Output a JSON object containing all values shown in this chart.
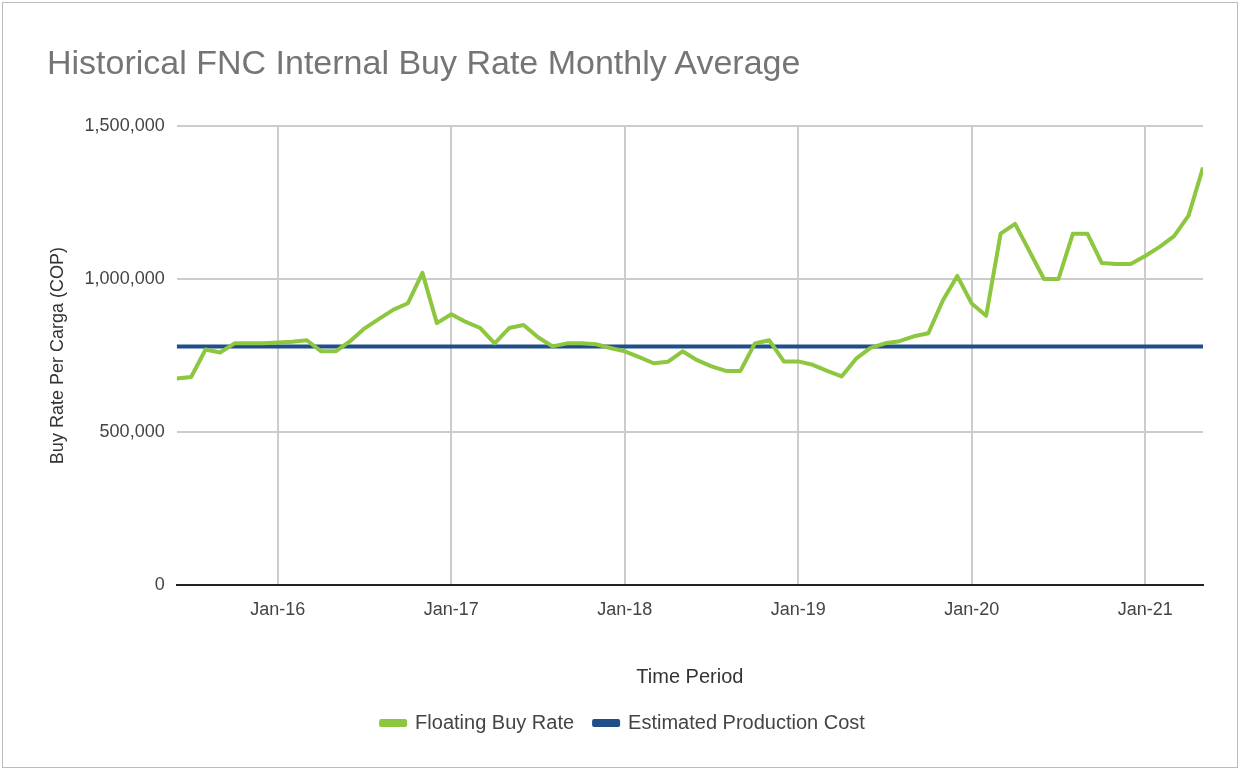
{
  "chart_data": {
    "type": "line",
    "title": "Historical FNC Internal Buy Rate Monthly Average",
    "xlabel": "Time Period",
    "ylabel": "Buy Rate Per Carga (COP)",
    "x": [
      "2015-06",
      "2015-07",
      "2015-08",
      "2015-09",
      "2015-10",
      "2015-11",
      "2015-12",
      "2016-01",
      "2016-02",
      "2016-03",
      "2016-04",
      "2016-05",
      "2016-06",
      "2016-07",
      "2016-08",
      "2016-09",
      "2016-10",
      "2016-11",
      "2016-12",
      "2017-01",
      "2017-02",
      "2017-03",
      "2017-04",
      "2017-05",
      "2017-06",
      "2017-07",
      "2017-08",
      "2017-09",
      "2017-10",
      "2017-11",
      "2017-12",
      "2018-01",
      "2018-02",
      "2018-03",
      "2018-04",
      "2018-05",
      "2018-06",
      "2018-07",
      "2018-08",
      "2018-09",
      "2018-10",
      "2018-11",
      "2018-12",
      "2019-01",
      "2019-02",
      "2019-03",
      "2019-04",
      "2019-05",
      "2019-06",
      "2019-07",
      "2019-08",
      "2019-09",
      "2019-10",
      "2019-11",
      "2019-12",
      "2020-01",
      "2020-02",
      "2020-03",
      "2020-04",
      "2020-05",
      "2020-06",
      "2020-07",
      "2020-08",
      "2020-09",
      "2020-10",
      "2020-11",
      "2020-12",
      "2021-01",
      "2021-02",
      "2021-03",
      "2021-04",
      "2021-05"
    ],
    "series": [
      {
        "name": "Floating Buy Rate",
        "color": "#8dc63f",
        "values": [
          675000,
          680000,
          770000,
          760000,
          790000,
          790000,
          790000,
          793000,
          795000,
          800000,
          764000,
          764000,
          797000,
          839000,
          870000,
          900000,
          921000,
          1020000,
          856000,
          885000,
          860000,
          840000,
          790000,
          840000,
          850000,
          810000,
          780000,
          790000,
          790000,
          787000,
          775000,
          764000,
          745000,
          725000,
          730000,
          764000,
          735000,
          715000,
          700000,
          700000,
          790000,
          800000,
          731000,
          731000,
          720000,
          700000,
          682000,
          740000,
          775000,
          790000,
          797000,
          813000,
          823000,
          930000,
          1010000,
          920000,
          880000,
          1148000,
          1180000,
          1090000,
          1000000,
          1000000,
          1148000,
          1148000,
          1052000,
          1049000,
          1049000,
          1075000,
          1105000,
          1140000,
          1207000,
          1364000
        ]
      },
      {
        "name": "Estimated Production Cost",
        "color": "#1f4e89",
        "values": [
          780000,
          780000,
          780000,
          780000,
          780000,
          780000,
          780000,
          780000,
          780000,
          780000,
          780000,
          780000,
          780000,
          780000,
          780000,
          780000,
          780000,
          780000,
          780000,
          780000,
          780000,
          780000,
          780000,
          780000,
          780000,
          780000,
          780000,
          780000,
          780000,
          780000,
          780000,
          780000,
          780000,
          780000,
          780000,
          780000,
          780000,
          780000,
          780000,
          780000,
          780000,
          780000,
          780000,
          780000,
          780000,
          780000,
          780000,
          780000,
          780000,
          780000,
          780000,
          780000,
          780000,
          780000,
          780000,
          780000,
          780000,
          780000,
          780000,
          780000,
          780000,
          780000,
          780000,
          780000,
          780000,
          780000,
          780000,
          780000,
          780000,
          780000,
          780000,
          780000
        ]
      }
    ],
    "xlim": [
      "2015-06",
      "2021-05"
    ],
    "xticks": [
      {
        "value": "2016-01",
        "label": "Jan-16"
      },
      {
        "value": "2017-01",
        "label": "Jan-17"
      },
      {
        "value": "2018-01",
        "label": "Jan-18"
      },
      {
        "value": "2019-01",
        "label": "Jan-19"
      },
      {
        "value": "2020-01",
        "label": "Jan-20"
      },
      {
        "value": "2021-01",
        "label": "Jan-21"
      }
    ],
    "ylim": [
      0,
      1500000
    ],
    "yticks": [
      {
        "value": 0,
        "label": "0"
      },
      {
        "value": 500000,
        "label": "500,000"
      },
      {
        "value": 1000000,
        "label": "1,000,000"
      },
      {
        "value": 1500000,
        "label": "1,500,000"
      }
    ],
    "grid": true,
    "legend": "bottom",
    "marker": "none",
    "line_style": "solid"
  }
}
